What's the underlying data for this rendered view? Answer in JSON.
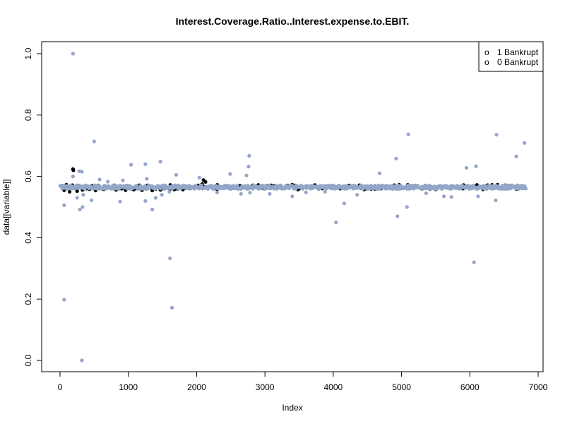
{
  "chart_data": {
    "type": "scatter",
    "title": "Interest.Coverage.Ratio..Interest.expense.to.EBIT.",
    "xlabel": "Index",
    "ylabel": "data[[variable]]",
    "xlim": [
      0,
      7000
    ],
    "ylim": [
      0,
      1.0
    ],
    "x_ticks": [
      "0",
      "1000",
      "2000",
      "3000",
      "4000",
      "5000",
      "6000",
      "7000"
    ],
    "y_ticks": [
      "0.0",
      "0.2",
      "0.4",
      "0.6",
      "0.8",
      "1.0"
    ],
    "grid": false,
    "legend": {
      "position": "top-right",
      "entries": [
        {
          "symbol": "o",
          "label": "1 Bankrupt"
        },
        {
          "symbol": "o",
          "label": "0 Bankrupt"
        }
      ]
    },
    "series": [
      {
        "name": "1 Bankrupt",
        "color": "#000000",
        "band": {
          "x_range": [
            0,
            6820
          ],
          "center": 0.565,
          "spread": 0.008,
          "count": 120
        },
        "points": [
          {
            "x": 190,
            "y": 0.624
          },
          {
            "x": 195,
            "y": 0.62
          },
          {
            "x": 60,
            "y": 0.555
          },
          {
            "x": 140,
            "y": 0.55
          },
          {
            "x": 250,
            "y": 0.552
          },
          {
            "x": 330,
            "y": 0.556
          },
          {
            "x": 430,
            "y": 0.558
          },
          {
            "x": 520,
            "y": 0.554
          },
          {
            "x": 640,
            "y": 0.558
          },
          {
            "x": 820,
            "y": 0.556
          },
          {
            "x": 960,
            "y": 0.555
          },
          {
            "x": 1080,
            "y": 0.557
          },
          {
            "x": 1200,
            "y": 0.555
          },
          {
            "x": 1350,
            "y": 0.554
          },
          {
            "x": 1470,
            "y": 0.556
          },
          {
            "x": 1610,
            "y": 0.558
          },
          {
            "x": 1800,
            "y": 0.56
          },
          {
            "x": 2080,
            "y": 0.575
          },
          {
            "x": 2100,
            "y": 0.588
          },
          {
            "x": 2130,
            "y": 0.582
          },
          {
            "x": 2300,
            "y": 0.558
          },
          {
            "x": 2500,
            "y": 0.56
          },
          {
            "x": 2750,
            "y": 0.56
          },
          {
            "x": 3000,
            "y": 0.56
          },
          {
            "x": 3250,
            "y": 0.562
          },
          {
            "x": 3500,
            "y": 0.56
          },
          {
            "x": 3800,
            "y": 0.562
          },
          {
            "x": 4100,
            "y": 0.56
          },
          {
            "x": 4400,
            "y": 0.562
          },
          {
            "x": 4700,
            "y": 0.56
          },
          {
            "x": 5000,
            "y": 0.562
          },
          {
            "x": 5300,
            "y": 0.56
          },
          {
            "x": 5600,
            "y": 0.562
          },
          {
            "x": 5900,
            "y": 0.56
          },
          {
            "x": 6200,
            "y": 0.562
          },
          {
            "x": 6500,
            "y": 0.56
          },
          {
            "x": 6780,
            "y": 0.562
          }
        ]
      },
      {
        "name": "0 Bankrupt",
        "color": "#94a6c8",
        "band": {
          "x_range": [
            0,
            6820
          ],
          "center": 0.565,
          "spread": 0.006,
          "count": 700
        },
        "points": [
          {
            "x": 190,
            "y": 1.0
          },
          {
            "x": 320,
            "y": 0.0
          },
          {
            "x": 60,
            "y": 0.198
          },
          {
            "x": 1640,
            "y": 0.172
          },
          {
            "x": 1610,
            "y": 0.333
          },
          {
            "x": 6060,
            "y": 0.32
          },
          {
            "x": 4040,
            "y": 0.45
          },
          {
            "x": 4940,
            "y": 0.47
          },
          {
            "x": 5080,
            "y": 0.5
          },
          {
            "x": 4160,
            "y": 0.512
          },
          {
            "x": 500,
            "y": 0.714
          },
          {
            "x": 5100,
            "y": 0.737
          },
          {
            "x": 6390,
            "y": 0.736
          },
          {
            "x": 6800,
            "y": 0.709
          },
          {
            "x": 2770,
            "y": 0.667
          },
          {
            "x": 6680,
            "y": 0.665
          },
          {
            "x": 4920,
            "y": 0.658
          },
          {
            "x": 1470,
            "y": 0.648
          },
          {
            "x": 1040,
            "y": 0.638
          },
          {
            "x": 1250,
            "y": 0.64
          },
          {
            "x": 2760,
            "y": 0.632
          },
          {
            "x": 5950,
            "y": 0.628
          },
          {
            "x": 6090,
            "y": 0.633
          },
          {
            "x": 280,
            "y": 0.617
          },
          {
            "x": 320,
            "y": 0.615
          },
          {
            "x": 190,
            "y": 0.6
          },
          {
            "x": 1700,
            "y": 0.605
          },
          {
            "x": 2490,
            "y": 0.608
          },
          {
            "x": 4680,
            "y": 0.61
          },
          {
            "x": 2730,
            "y": 0.603
          },
          {
            "x": 2040,
            "y": 0.596
          },
          {
            "x": 580,
            "y": 0.59
          },
          {
            "x": 700,
            "y": 0.583
          },
          {
            "x": 920,
            "y": 0.587
          },
          {
            "x": 1270,
            "y": 0.592
          },
          {
            "x": 290,
            "y": 0.492
          },
          {
            "x": 330,
            "y": 0.5
          },
          {
            "x": 60,
            "y": 0.506
          },
          {
            "x": 340,
            "y": 0.54
          },
          {
            "x": 250,
            "y": 0.53
          },
          {
            "x": 460,
            "y": 0.522
          },
          {
            "x": 880,
            "y": 0.518
          },
          {
            "x": 1250,
            "y": 0.52
          },
          {
            "x": 1350,
            "y": 0.492
          },
          {
            "x": 1400,
            "y": 0.53
          },
          {
            "x": 1490,
            "y": 0.54
          },
          {
            "x": 1600,
            "y": 0.55
          },
          {
            "x": 2300,
            "y": 0.548
          },
          {
            "x": 2650,
            "y": 0.543
          },
          {
            "x": 2780,
            "y": 0.547
          },
          {
            "x": 3070,
            "y": 0.543
          },
          {
            "x": 3400,
            "y": 0.535
          },
          {
            "x": 3600,
            "y": 0.548
          },
          {
            "x": 3880,
            "y": 0.55
          },
          {
            "x": 4350,
            "y": 0.54
          },
          {
            "x": 5360,
            "y": 0.545
          },
          {
            "x": 5620,
            "y": 0.535
          },
          {
            "x": 5730,
            "y": 0.533
          },
          {
            "x": 6380,
            "y": 0.522
          },
          {
            "x": 6120,
            "y": 0.535
          }
        ]
      }
    ]
  }
}
